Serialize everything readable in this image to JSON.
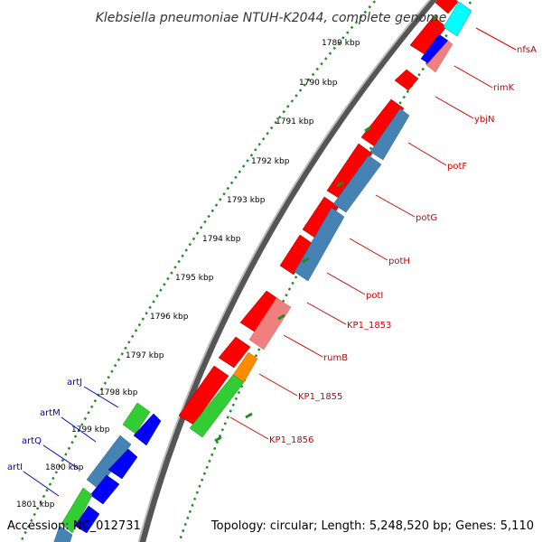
{
  "title": "Klebsiella pneumoniae NTUH-K2044, complete genome",
  "footer": {
    "accession": "Accession: NC_012731",
    "summary": "Topology: circular; Length: 5,248,520 bp; Genes: 5,110"
  },
  "colors": {
    "red": "#ff0000",
    "pink": "#f08080",
    "steelblue": "#4682b4",
    "blue": "#0000ff",
    "green": "#32cd32",
    "orange": "#ff8c00",
    "cyan": "#00ffff",
    "label_red": "#cc0000",
    "label_blue": "#0000cc",
    "tick_green": "#228b22"
  },
  "ticks": [
    "1789 kbp",
    "1790 kbp",
    "1791 kbp",
    "1792 kbp",
    "1793 kbp",
    "1794 kbp",
    "1795 kbp",
    "1796 kbp",
    "1797 kbp",
    "1798 kbp",
    "1799 kbp",
    "1800 kbp",
    "1801 kbp"
  ],
  "gene_labels_right": [
    "nfsA",
    "rimK",
    "ybjN",
    "potF",
    "potG",
    "potH",
    "potI",
    "KP1_1853",
    "rumB",
    "KP1_1855",
    "KP1_1856"
  ],
  "gene_labels_left": [
    "artJ",
    "artM",
    "artQ",
    "artI"
  ]
}
